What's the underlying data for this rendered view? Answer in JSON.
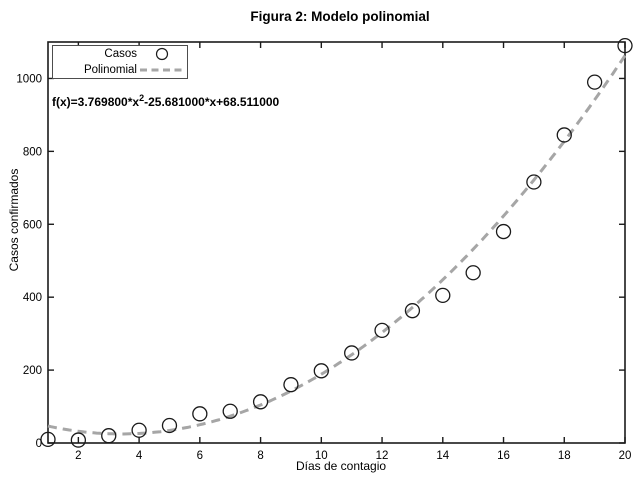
{
  "chart_data": {
    "type": "scatter",
    "title": "Figura 2: Modelo polinomial",
    "xlabel": "Días de contagio",
    "ylabel": "Casos confirmados",
    "xlim": [
      1,
      20
    ],
    "ylim": [
      0,
      1100
    ],
    "xticks": [
      2,
      4,
      6,
      8,
      10,
      12,
      14,
      16,
      18,
      20
    ],
    "yticks": [
      0,
      200,
      400,
      600,
      800,
      1000
    ],
    "grid": false,
    "axis_color": "#1a1a1a",
    "series": [
      {
        "name": "Casos",
        "type": "scatter",
        "marker": "open-circle",
        "color": "#1a1a1a",
        "x": [
          1,
          2,
          3,
          4,
          5,
          6,
          7,
          8,
          9,
          10,
          11,
          12,
          13,
          14,
          15,
          16,
          17,
          18,
          19,
          20
        ],
        "y": [
          10,
          8,
          20,
          35,
          48,
          80,
          87,
          113,
          160,
          198,
          247,
          309,
          363,
          405,
          467,
          580,
          716,
          845,
          990,
          1090
        ]
      },
      {
        "name": "Polinomial",
        "type": "line",
        "line_style": "dashed",
        "color": "#a6a6a6",
        "poly_coeffs": [
          3.7698,
          -25.681,
          68.511
        ]
      }
    ],
    "annotation": {
      "prefix": "f(x)=3.769800*x",
      "sup": "2",
      "suffix": "-25.681000*x+68.511000"
    },
    "legend": {
      "position": "top-left",
      "items": [
        {
          "label": "Casos",
          "marker": "open-circle"
        },
        {
          "label": "Polinomial",
          "marker": "dashed-line"
        }
      ]
    }
  }
}
